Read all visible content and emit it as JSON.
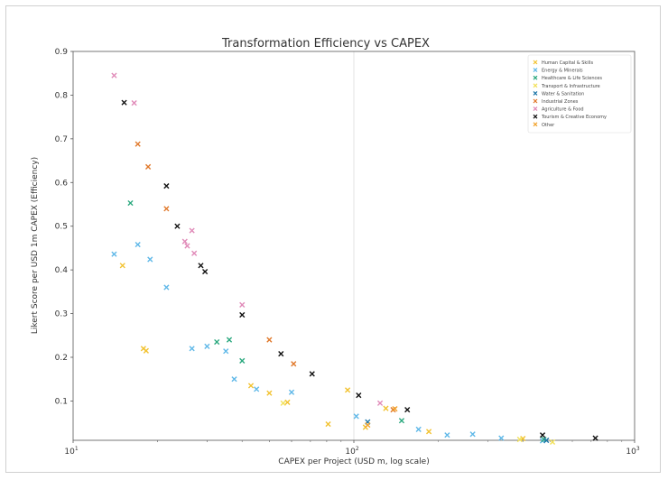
{
  "chart_data": {
    "type": "scatter",
    "title": "Transformation Efficiency vs CAPEX",
    "xlabel": "CAPEX per Project (USD m, log scale)",
    "ylabel": "Likert Score per USD 1m CAPEX (Efficiency)",
    "xscale": "log",
    "xlim": [
      10,
      1000
    ],
    "ylim": [
      0.01,
      0.9
    ],
    "grid": "major gridline at x=10^2",
    "legend_position": "top-right",
    "x_ticks": [
      {
        "value": 10,
        "base": "10",
        "exp": "1"
      },
      {
        "value": 100,
        "base": "10",
        "exp": "2"
      },
      {
        "value": 1000,
        "base": "10",
        "exp": "3"
      }
    ],
    "y_ticks": [
      "0.1",
      "0.2",
      "0.3",
      "0.4",
      "0.5",
      "0.6",
      "0.7",
      "0.8",
      "0.9"
    ],
    "series": [
      {
        "name": "Human Capital & Skills",
        "color": "#f2c230",
        "points": [
          [
            15,
            0.41
          ],
          [
            17.8,
            0.22
          ],
          [
            18.2,
            0.215
          ],
          [
            43,
            0.135
          ],
          [
            50,
            0.118
          ],
          [
            58,
            0.097
          ],
          [
            81,
            0.047
          ],
          [
            95,
            0.125
          ],
          [
            110,
            0.04
          ],
          [
            130,
            0.083
          ],
          [
            185,
            0.03
          ],
          [
            400,
            0.014
          ]
        ]
      },
      {
        "name": "Energy & Minerals",
        "color": "#5fb8e8",
        "points": [
          [
            14,
            0.436
          ],
          [
            17,
            0.458
          ],
          [
            18.8,
            0.424
          ],
          [
            21.5,
            0.36
          ],
          [
            26.5,
            0.22
          ],
          [
            30,
            0.225
          ],
          [
            35,
            0.214
          ],
          [
            37.5,
            0.15
          ],
          [
            45,
            0.127
          ],
          [
            60,
            0.12
          ],
          [
            102,
            0.065
          ],
          [
            170,
            0.035
          ],
          [
            215,
            0.022
          ],
          [
            265,
            0.024
          ],
          [
            335,
            0.015
          ],
          [
            470,
            0.009
          ]
        ]
      },
      {
        "name": "Healthcare & Life Sciences",
        "color": "#2aa87e",
        "points": [
          [
            16,
            0.553
          ],
          [
            32.5,
            0.235
          ],
          [
            36,
            0.24
          ],
          [
            40,
            0.192
          ],
          [
            148,
            0.055
          ],
          [
            475,
            0.012
          ]
        ]
      },
      {
        "name": "Transport & Infrastructure",
        "color": "#f2e15a",
        "points": [
          [
            56,
            0.095
          ],
          [
            390,
            0.012
          ],
          [
            510,
            0.006
          ]
        ]
      },
      {
        "name": "Water & Sanitation",
        "color": "#1f77a8",
        "points": [
          [
            112,
            0.052
          ],
          [
            485,
            0.01
          ]
        ]
      },
      {
        "name": "Industrial Zones",
        "color": "#e0782a",
        "points": [
          [
            17,
            0.688
          ],
          [
            18.5,
            0.636
          ],
          [
            21.5,
            0.54
          ],
          [
            50,
            0.24
          ],
          [
            61,
            0.185
          ],
          [
            138,
            0.08
          ]
        ]
      },
      {
        "name": "Agriculture & Food",
        "color": "#e08ab8",
        "points": [
          [
            14,
            0.845
          ],
          [
            16.5,
            0.782
          ],
          [
            25,
            0.465
          ],
          [
            25.5,
            0.455
          ],
          [
            26.5,
            0.49
          ],
          [
            27,
            0.438
          ],
          [
            40,
            0.32
          ],
          [
            124,
            0.095
          ]
        ]
      },
      {
        "name": "Tourism & Creative Economy",
        "color": "#111111",
        "points": [
          [
            15.2,
            0.783
          ],
          [
            21.5,
            0.592
          ],
          [
            23.5,
            0.5
          ],
          [
            28.5,
            0.41
          ],
          [
            29.5,
            0.396
          ],
          [
            40,
            0.297
          ],
          [
            55,
            0.208
          ],
          [
            71,
            0.162
          ],
          [
            104,
            0.113
          ],
          [
            155,
            0.08
          ],
          [
            470,
            0.022
          ],
          [
            725,
            0.015
          ]
        ]
      },
      {
        "name": "Other",
        "color": "#f2a430",
        "points": [
          [
            112,
            0.045
          ],
          [
            140,
            0.082
          ]
        ]
      }
    ]
  }
}
